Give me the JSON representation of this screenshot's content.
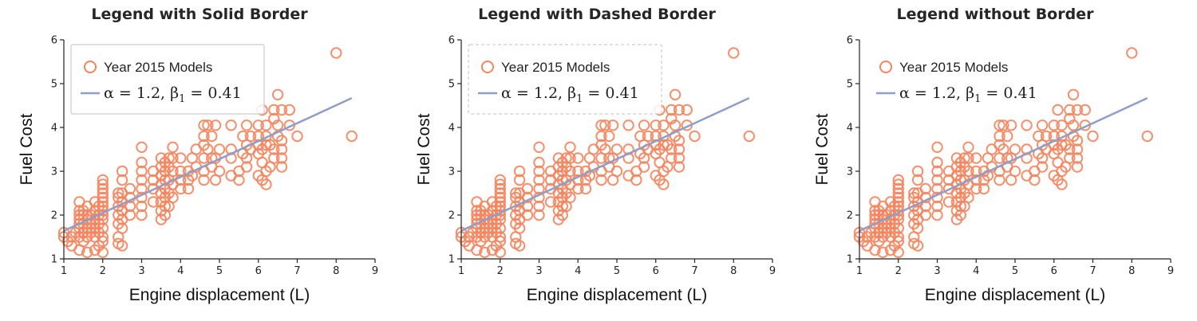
{
  "colors": {
    "marker": "#f4845d",
    "fit_line": "#8e9ec9",
    "axis": "#222222",
    "legend_border": "#cccccc"
  },
  "chart_data": [
    {
      "type": "scatter",
      "title": "Legend with Solid Border",
      "legend_border": "solid",
      "legend_placement": "top-left",
      "xlabel": "Engine displacement (L)",
      "ylabel": "Fuel Cost",
      "xlim": [
        1,
        9
      ],
      "ylim": [
        1,
        6
      ],
      "xticks": [
        "1",
        "2",
        "3",
        "4",
        "5",
        "6",
        "7",
        "8",
        "9"
      ],
      "yticks": [
        "1",
        "2",
        "3",
        "4",
        "5",
        "6"
      ],
      "legend": [
        {
          "label": "Year 2015 Models",
          "marker": "open-circle"
        },
        {
          "label_parts": [
            "α = 1.2, β",
            "1",
            " = 0.41"
          ],
          "marker": "line"
        }
      ],
      "fit": {
        "x": [
          1.0,
          8.4
        ],
        "y": [
          1.64,
          4.67
        ]
      }
    },
    {
      "type": "scatter",
      "title": "Legend with Dashed Border",
      "legend_border": "dashed",
      "legend_placement": "top-left",
      "xlabel": "Engine displacement (L)",
      "ylabel": "Fuel Cost",
      "xlim": [
        1,
        9
      ],
      "ylim": [
        1,
        6
      ],
      "xticks": [
        "1",
        "2",
        "3",
        "4",
        "5",
        "6",
        "7",
        "8",
        "9"
      ],
      "yticks": [
        "1",
        "2",
        "3",
        "4",
        "5",
        "6"
      ],
      "legend": [
        {
          "label": "Year 2015 Models",
          "marker": "open-circle"
        },
        {
          "label_parts": [
            "α = 1.2, β",
            "1",
            " = 0.41"
          ],
          "marker": "line"
        }
      ],
      "fit": {
        "x": [
          1.0,
          8.4
        ],
        "y": [
          1.64,
          4.67
        ]
      }
    },
    {
      "type": "scatter",
      "title": "Legend without Border",
      "legend_border": "none",
      "legend_placement": "top-left",
      "xlabel": "Engine displacement (L)",
      "ylabel": "Fuel Cost",
      "xlim": [
        1,
        9
      ],
      "ylim": [
        1,
        6
      ],
      "xticks": [
        "1",
        "2",
        "3",
        "4",
        "5",
        "6",
        "7",
        "8",
        "9"
      ],
      "yticks": [
        "1",
        "2",
        "3",
        "4",
        "5",
        "6"
      ],
      "legend": [
        {
          "label": "Year 2015 Models",
          "marker": "open-circle"
        },
        {
          "label_parts": [
            "α = 1.2, β",
            "1",
            " = 0.41"
          ],
          "marker": "line"
        }
      ],
      "fit": {
        "x": [
          1.0,
          8.4
        ],
        "y": [
          1.64,
          4.67
        ]
      }
    }
  ],
  "scatter_points": [
    [
      1.0,
      1.6
    ],
    [
      1.0,
      1.5
    ],
    [
      1.1,
      1.4
    ],
    [
      1.2,
      1.3
    ],
    [
      1.2,
      1.5
    ],
    [
      1.3,
      1.6
    ],
    [
      1.4,
      1.8
    ],
    [
      1.4,
      1.9
    ],
    [
      1.4,
      2.0
    ],
    [
      1.4,
      2.1
    ],
    [
      1.4,
      2.3
    ],
    [
      1.4,
      1.7
    ],
    [
      1.4,
      1.5
    ],
    [
      1.4,
      1.2
    ],
    [
      1.5,
      1.4
    ],
    [
      1.5,
      1.6
    ],
    [
      1.5,
      1.8
    ],
    [
      1.5,
      2.0
    ],
    [
      1.5,
      2.1
    ],
    [
      1.6,
      1.5
    ],
    [
      1.6,
      1.7
    ],
    [
      1.6,
      1.9
    ],
    [
      1.6,
      2.0
    ],
    [
      1.6,
      2.2
    ],
    [
      1.6,
      1.15
    ],
    [
      1.7,
      1.6
    ],
    [
      1.7,
      1.8
    ],
    [
      1.7,
      2.0
    ],
    [
      1.8,
      1.5
    ],
    [
      1.8,
      1.7
    ],
    [
      1.8,
      1.9
    ],
    [
      1.8,
      2.1
    ],
    [
      1.8,
      2.3
    ],
    [
      1.8,
      1.2
    ],
    [
      1.9,
      1.6
    ],
    [
      1.9,
      1.8
    ],
    [
      1.9,
      2.0
    ],
    [
      1.9,
      2.2
    ],
    [
      1.9,
      1.3
    ],
    [
      2.0,
      1.5
    ],
    [
      2.0,
      1.7
    ],
    [
      2.0,
      1.9
    ],
    [
      2.0,
      2.0
    ],
    [
      2.0,
      2.1
    ],
    [
      2.0,
      2.2
    ],
    [
      2.0,
      2.3
    ],
    [
      2.0,
      2.4
    ],
    [
      2.0,
      2.5
    ],
    [
      2.0,
      2.6
    ],
    [
      2.0,
      2.7
    ],
    [
      2.0,
      2.8
    ],
    [
      2.0,
      1.4
    ],
    [
      2.0,
      1.15
    ],
    [
      2.4,
      1.8
    ],
    [
      2.4,
      2.0
    ],
    [
      2.4,
      2.2
    ],
    [
      2.4,
      2.4
    ],
    [
      2.4,
      2.5
    ],
    [
      2.4,
      1.5
    ],
    [
      2.4,
      1.35
    ],
    [
      2.5,
      1.7
    ],
    [
      2.5,
      1.9
    ],
    [
      2.5,
      2.1
    ],
    [
      2.5,
      2.3
    ],
    [
      2.5,
      2.5
    ],
    [
      2.5,
      2.8
    ],
    [
      2.5,
      3.0
    ],
    [
      2.5,
      1.3
    ],
    [
      2.7,
      2.0
    ],
    [
      2.7,
      2.2
    ],
    [
      2.7,
      2.4
    ],
    [
      2.7,
      2.6
    ],
    [
      3.0,
      2.0
    ],
    [
      3.0,
      2.2
    ],
    [
      3.0,
      2.4
    ],
    [
      3.0,
      2.6
    ],
    [
      3.0,
      2.8
    ],
    [
      3.0,
      3.0
    ],
    [
      3.0,
      3.2
    ],
    [
      3.0,
      3.55
    ],
    [
      3.3,
      2.3
    ],
    [
      3.3,
      2.6
    ],
    [
      3.3,
      2.8
    ],
    [
      3.3,
      3.0
    ],
    [
      3.5,
      1.9
    ],
    [
      3.5,
      2.1
    ],
    [
      3.5,
      2.3
    ],
    [
      3.5,
      2.5
    ],
    [
      3.5,
      2.7
    ],
    [
      3.5,
      2.9
    ],
    [
      3.5,
      3.1
    ],
    [
      3.5,
      3.3
    ],
    [
      3.6,
      2.0
    ],
    [
      3.6,
      2.2
    ],
    [
      3.6,
      2.4
    ],
    [
      3.6,
      2.6
    ],
    [
      3.6,
      2.8
    ],
    [
      3.6,
      3.0
    ],
    [
      3.6,
      3.2
    ],
    [
      3.7,
      2.2
    ],
    [
      3.7,
      2.5
    ],
    [
      3.7,
      2.8
    ],
    [
      3.7,
      3.1
    ],
    [
      3.7,
      3.3
    ],
    [
      3.8,
      2.4
    ],
    [
      3.8,
      2.7
    ],
    [
      3.8,
      3.0
    ],
    [
      3.8,
      3.3
    ],
    [
      3.8,
      3.55
    ],
    [
      4.0,
      2.6
    ],
    [
      4.0,
      2.8
    ],
    [
      4.0,
      3.0
    ],
    [
      4.0,
      3.3
    ],
    [
      4.2,
      2.6
    ],
    [
      4.2,
      2.8
    ],
    [
      4.2,
      3.0
    ],
    [
      4.3,
      3.3
    ],
    [
      4.3,
      2.9
    ],
    [
      4.4,
      3.1
    ],
    [
      4.4,
      3.5
    ],
    [
      4.6,
      2.8
    ],
    [
      4.6,
      3.0
    ],
    [
      4.6,
      3.3
    ],
    [
      4.6,
      3.6
    ],
    [
      4.6,
      3.8
    ],
    [
      4.6,
      4.05
    ],
    [
      4.7,
      3.5
    ],
    [
      4.7,
      4.05
    ],
    [
      4.8,
      3.1
    ],
    [
      4.8,
      3.3
    ],
    [
      4.8,
      3.8
    ],
    [
      4.9,
      2.8
    ],
    [
      4.9,
      3.3
    ],
    [
      4.9,
      4.05
    ],
    [
      5.0,
      3.0
    ],
    [
      5.0,
      3.5
    ],
    [
      5.3,
      2.9
    ],
    [
      5.3,
      3.3
    ],
    [
      5.3,
      3.5
    ],
    [
      5.3,
      4.05
    ],
    [
      5.5,
      2.8
    ],
    [
      5.5,
      3.0
    ],
    [
      5.6,
      3.4
    ],
    [
      5.6,
      3.8
    ],
    [
      5.7,
      3.1
    ],
    [
      5.7,
      3.3
    ],
    [
      5.7,
      4.05
    ],
    [
      5.7,
      3.6
    ],
    [
      5.8,
      3.8
    ],
    [
      5.8,
      3.5
    ],
    [
      6.0,
      2.9
    ],
    [
      6.0,
      3.4
    ],
    [
      6.0,
      3.6
    ],
    [
      6.0,
      3.8
    ],
    [
      6.0,
      4.05
    ],
    [
      6.1,
      4.4
    ],
    [
      6.1,
      3.5
    ],
    [
      6.1,
      3.2
    ],
    [
      6.1,
      2.8
    ],
    [
      6.2,
      3.0
    ],
    [
      6.2,
      3.6
    ],
    [
      6.2,
      3.8
    ],
    [
      6.2,
      4.05
    ],
    [
      6.2,
      2.7
    ],
    [
      6.3,
      3.1
    ],
    [
      6.3,
      3.6
    ],
    [
      6.4,
      3.5
    ],
    [
      6.4,
      3.3
    ],
    [
      6.4,
      4.2
    ],
    [
      6.4,
      4.4
    ],
    [
      6.5,
      3.8
    ],
    [
      6.5,
      4.05
    ],
    [
      6.6,
      3.1
    ],
    [
      6.6,
      3.3
    ],
    [
      6.6,
      3.5
    ],
    [
      6.6,
      3.7
    ],
    [
      6.6,
      4.4
    ],
    [
      6.5,
      4.75
    ],
    [
      6.8,
      4.05
    ],
    [
      6.8,
      4.4
    ],
    [
      7.0,
      3.8
    ],
    [
      8.0,
      5.7
    ],
    [
      8.4,
      3.8
    ]
  ]
}
